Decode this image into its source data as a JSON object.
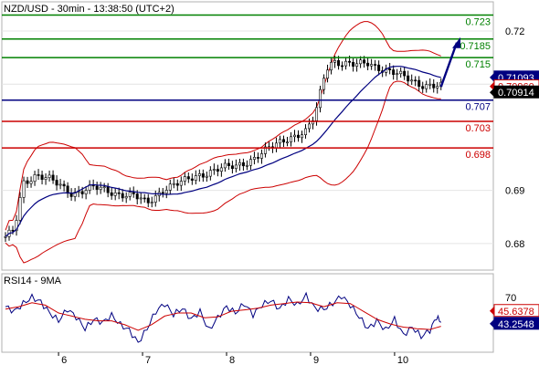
{
  "header": {
    "title": "NZD/USD - 30min - 13:38:50 (UTC+2)"
  },
  "chart_data": [
    {
      "type": "candlestick",
      "symbol": "NZD/USD",
      "timeframe": "30min",
      "ylim": [
        0.675,
        0.7255
      ],
      "y_ticks": [
        "0.72",
        "0.71",
        "0.69",
        "0.68"
      ],
      "x_ticks": [
        "6",
        "7",
        "8",
        "9",
        "10"
      ],
      "overlays": [
        "Bollinger Bands",
        "Moving Average"
      ],
      "price_path": [
        [
          0,
          0.681
        ],
        [
          0.02,
          0.6825
        ],
        [
          0.04,
          0.6915
        ],
        [
          0.07,
          0.693
        ],
        [
          0.1,
          0.692
        ],
        [
          0.15,
          0.6895
        ],
        [
          0.2,
          0.6905
        ],
        [
          0.25,
          0.6895
        ],
        [
          0.29,
          0.689
        ],
        [
          0.32,
          0.6875
        ],
        [
          0.36,
          0.6905
        ],
        [
          0.4,
          0.6915
        ],
        [
          0.44,
          0.693
        ],
        [
          0.48,
          0.694
        ],
        [
          0.52,
          0.6945
        ],
        [
          0.56,
          0.696
        ],
        [
          0.6,
          0.698
        ],
        [
          0.64,
          0.7
        ],
        [
          0.68,
          0.701
        ],
        [
          0.7,
          0.704
        ],
        [
          0.725,
          0.713
        ],
        [
          0.74,
          0.7145
        ],
        [
          0.76,
          0.714
        ],
        [
          0.79,
          0.7135
        ],
        [
          0.82,
          0.714
        ],
        [
          0.85,
          0.713
        ],
        [
          0.88,
          0.712
        ],
        [
          0.91,
          0.711
        ],
        [
          0.94,
          0.71
        ],
        [
          0.985,
          0.7095
        ]
      ],
      "levels": [
        {
          "value": 0.723,
          "label": "0.723",
          "color": "#008000"
        },
        {
          "value": 0.7185,
          "label": "0.7185",
          "color": "#008000"
        },
        {
          "value": 0.715,
          "label": "0.715",
          "color": "#008000"
        },
        {
          "value": 0.707,
          "label": "0.707",
          "color": "#000080"
        },
        {
          "value": 0.703,
          "label": "0.703",
          "color": "#cc0000"
        },
        {
          "value": 0.698,
          "label": "0.698",
          "color": "#cc0000"
        }
      ],
      "price_tags": [
        {
          "value": 0.71093,
          "label": "0.71093",
          "color": "#000080"
        },
        {
          "value": 0.7096,
          "label": "0.70960",
          "color": "#cc0000"
        },
        {
          "value": 0.70914,
          "label": "0.70914",
          "color": "#000000"
        }
      ],
      "projection_arrow": {
        "from": 0.7095,
        "to": 0.7185
      },
      "colors": {
        "band": "#cc0000",
        "ma": "#000080",
        "candle": "#000000"
      }
    },
    {
      "type": "line",
      "title": "RSI14 - 9MA",
      "ylim": [
        0,
        100
      ],
      "y_ticks": [
        "70"
      ],
      "series": [
        {
          "name": "RSI14",
          "color": "#000080",
          "values": [
            [
              0,
              58
            ],
            [
              0.02,
              52
            ],
            [
              0.04,
              62
            ],
            [
              0.06,
              70
            ],
            [
              0.08,
              64
            ],
            [
              0.1,
              50
            ],
            [
              0.12,
              40
            ],
            [
              0.14,
              55
            ],
            [
              0.16,
              45
            ],
            [
              0.18,
              30
            ],
            [
              0.2,
              42
            ],
            [
              0.22,
              38
            ],
            [
              0.24,
              47
            ],
            [
              0.26,
              35
            ],
            [
              0.28,
              28
            ],
            [
              0.3,
              12
            ],
            [
              0.32,
              30
            ],
            [
              0.34,
              52
            ],
            [
              0.36,
              62
            ],
            [
              0.38,
              48
            ],
            [
              0.4,
              56
            ],
            [
              0.42,
              42
            ],
            [
              0.44,
              52
            ],
            [
              0.46,
              28
            ],
            [
              0.48,
              44
            ],
            [
              0.5,
              58
            ],
            [
              0.52,
              50
            ],
            [
              0.54,
              62
            ],
            [
              0.56,
              48
            ],
            [
              0.58,
              60
            ],
            [
              0.6,
              66
            ],
            [
              0.62,
              55
            ],
            [
              0.64,
              68
            ],
            [
              0.66,
              60
            ],
            [
              0.68,
              72
            ],
            [
              0.7,
              56
            ],
            [
              0.72,
              55
            ],
            [
              0.74,
              62
            ],
            [
              0.76,
              72
            ],
            [
              0.78,
              60
            ],
            [
              0.8,
              45
            ],
            [
              0.82,
              30
            ],
            [
              0.84,
              40
            ],
            [
              0.86,
              28
            ],
            [
              0.88,
              42
            ],
            [
              0.9,
              22
            ],
            [
              0.92,
              32
            ],
            [
              0.94,
              20
            ],
            [
              0.96,
              28
            ],
            [
              0.975,
              45
            ],
            [
              0.985,
              38
            ]
          ]
        },
        {
          "name": "9MA",
          "color": "#cc0000",
          "values": [
            [
              0,
              55
            ],
            [
              0.03,
              58
            ],
            [
              0.06,
              63
            ],
            [
              0.09,
              60
            ],
            [
              0.12,
              50
            ],
            [
              0.15,
              46
            ],
            [
              0.18,
              42
            ],
            [
              0.21,
              40
            ],
            [
              0.24,
              40
            ],
            [
              0.27,
              35
            ],
            [
              0.3,
              28
            ],
            [
              0.33,
              35
            ],
            [
              0.36,
              46
            ],
            [
              0.39,
              50
            ],
            [
              0.42,
              50
            ],
            [
              0.45,
              44
            ],
            [
              0.48,
              45
            ],
            [
              0.51,
              52
            ],
            [
              0.54,
              54
            ],
            [
              0.57,
              56
            ],
            [
              0.6,
              60
            ],
            [
              0.63,
              62
            ],
            [
              0.66,
              64
            ],
            [
              0.69,
              63
            ],
            [
              0.72,
              58
            ],
            [
              0.75,
              63
            ],
            [
              0.78,
              62
            ],
            [
              0.81,
              52
            ],
            [
              0.84,
              42
            ],
            [
              0.87,
              36
            ],
            [
              0.9,
              32
            ],
            [
              0.93,
              30
            ],
            [
              0.96,
              29
            ],
            [
              0.985,
              33
            ]
          ]
        }
      ],
      "value_tags": [
        {
          "value": 45.6378,
          "label": "45.6378",
          "color": "#cc0000"
        },
        {
          "value": 43.2548,
          "label": "43.2548",
          "color": "#000080"
        }
      ]
    }
  ]
}
